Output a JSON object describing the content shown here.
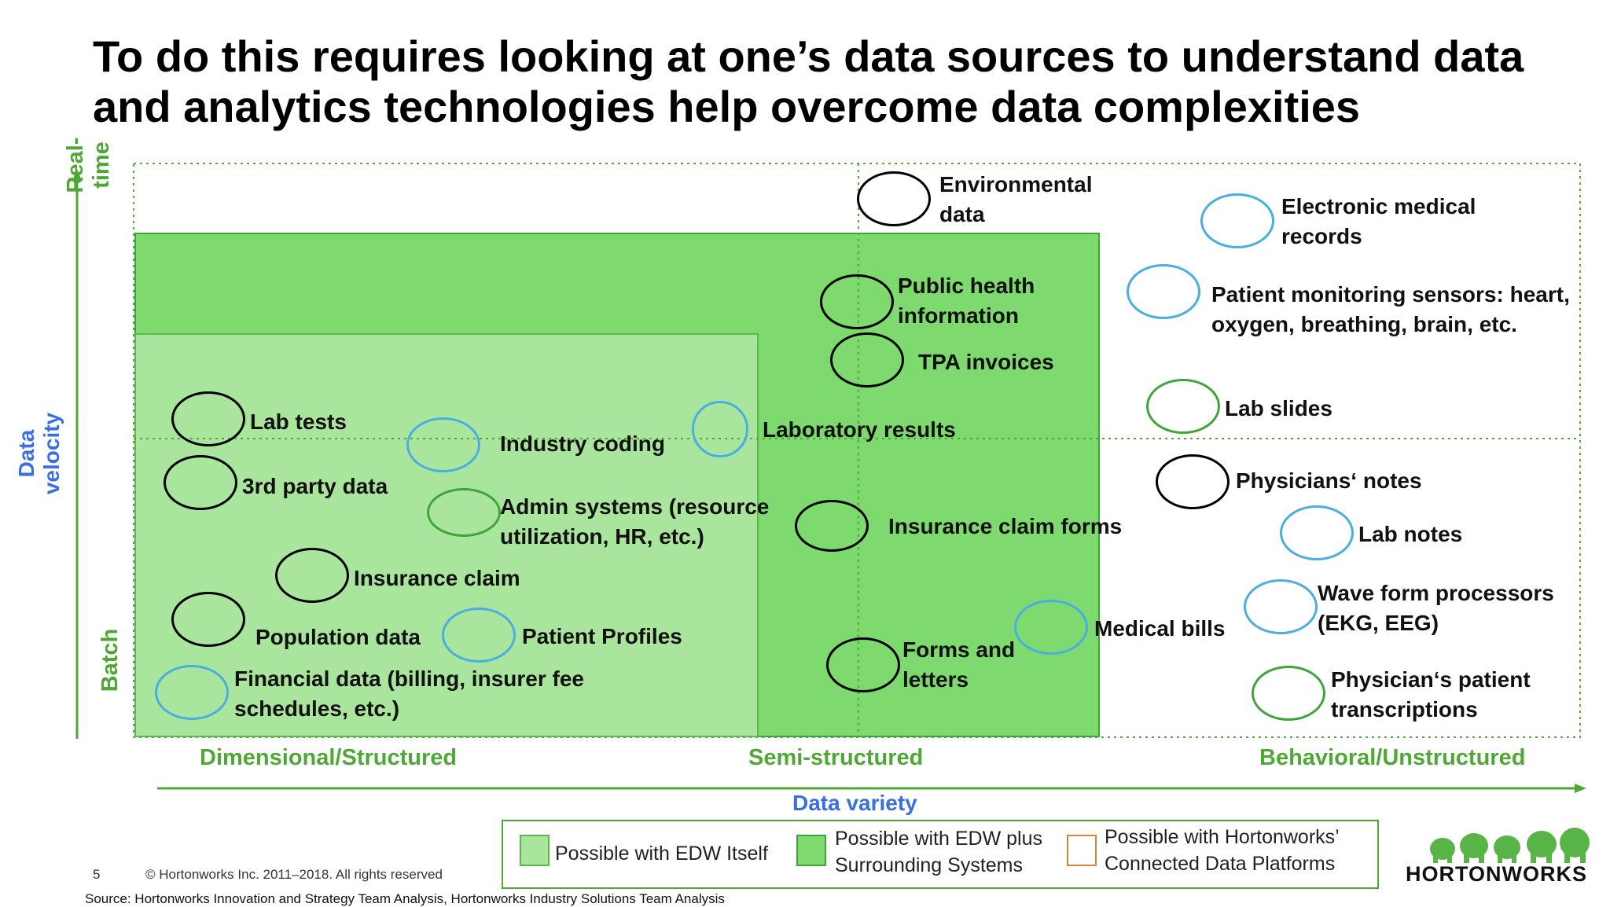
{
  "title": "To do this requires looking at one’s data sources to understand data and analytics technologies help overcome data complexities",
  "axes": {
    "y_title": "Data velocity",
    "y_top": "Real-time",
    "y_bottom": "Batch",
    "x_title": "Data variety",
    "x_left": "Dimensional/Structured",
    "x_mid": "Semi-structured",
    "x_right": "Behavioral/Unstructured"
  },
  "colors": {
    "edw": "#aae59d",
    "edw_plus": "#7ed96e",
    "hortonworks": "#ffffff",
    "axis": "#4fa836",
    "circle_black": "#000000",
    "circle_blue": "#4aaee0",
    "circle_green": "#3fa43a"
  },
  "items": {
    "lab_tests": "Lab tests",
    "industry_coding": "Industry coding",
    "third_party": "3rd party data",
    "admin_systems": "Admin systems (resource utilization, HR, etc.)",
    "insurance_claim": "Insurance claim",
    "population_data": "Population data",
    "patient_profiles": "Patient Profiles",
    "financial_data": "Financial data (billing, insurer fee schedules, etc.)",
    "environmental_data": "Environmental data",
    "public_health": "Public health information",
    "tpa_invoices": "TPA invoices",
    "laboratory_results": "Laboratory results",
    "insurance_claim_forms": "Insurance claim forms",
    "forms_letters": "Forms and letters",
    "medical_bills": "Medical bills",
    "emr": "Electronic medical records",
    "patient_monitoring": "Patient monitoring sensors:  heart, oxygen, breathing, brain, etc.",
    "lab_slides": "Lab slides",
    "physicians_notes": "Physicians‘ notes",
    "lab_notes": "Lab notes",
    "wave_form": "Wave form processors (EKG, EEG)",
    "physician_transcriptions": "Physician‘s patient transcriptions"
  },
  "legend": {
    "edw": "Possible with EDW Itself",
    "edw_plus_1": "Possible with EDW plus",
    "edw_plus_2": "Surrounding Systems",
    "hw_1": "Possible with Hortonworks’",
    "hw_2": "Connected Data Platforms"
  },
  "footer": {
    "page": "5",
    "copyright": "© Hortonworks Inc. 2011–2018. All rights reserved",
    "source": "Source: Hortonworks Innovation and Strategy Team Analysis, Hortonworks Industry Solutions Team Analysis",
    "logo": "HORTONWORKS"
  }
}
